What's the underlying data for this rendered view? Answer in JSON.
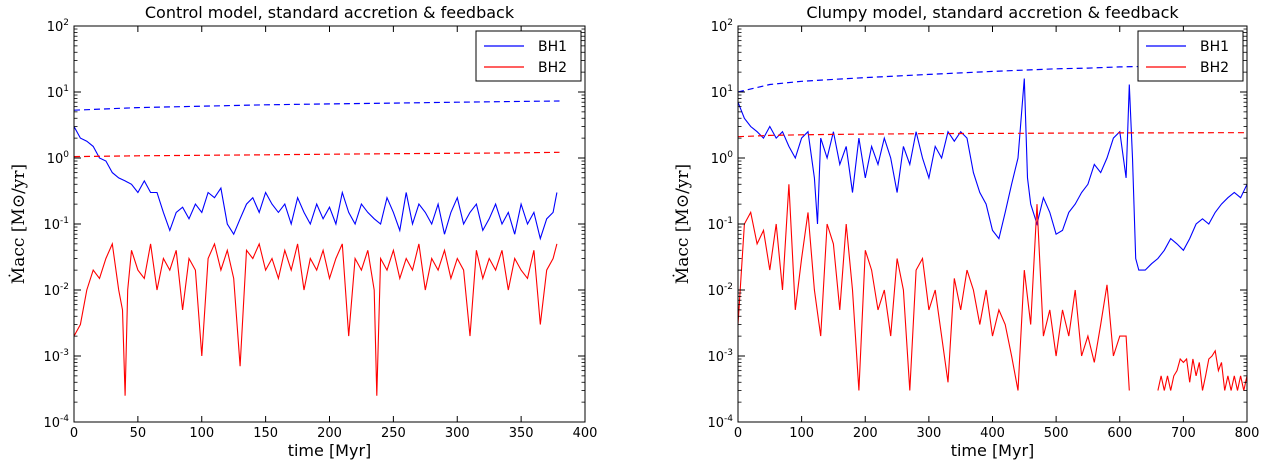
{
  "chart_data": [
    {
      "type": "line",
      "title": "Control model, standard accretion & feedback",
      "xlabel": "time [Myr]",
      "ylabel": "Ṁacc [M⊙/yr]",
      "xlim": [
        0,
        400
      ],
      "ylim": [
        0.0001,
        100
      ],
      "yscale": "log",
      "x_ticks": [
        "0",
        "50",
        "100",
        "150",
        "200",
        "250",
        "300",
        "350",
        "400"
      ],
      "y_ticks": [
        "10^-4",
        "10^-3",
        "10^-2",
        "10^-1",
        "10^0",
        "10^1",
        "10^2"
      ],
      "legend": {
        "position": "top-right",
        "entries": [
          "BH1",
          "BH2"
        ]
      },
      "series": [
        {
          "name": "BH1",
          "color": "#0000ff",
          "style": "solid",
          "x": [
            0,
            5,
            10,
            15,
            20,
            25,
            30,
            35,
            40,
            45,
            50,
            55,
            60,
            65,
            70,
            75,
            80,
            85,
            90,
            95,
            100,
            105,
            110,
            115,
            120,
            125,
            130,
            135,
            140,
            145,
            150,
            155,
            160,
            165,
            170,
            175,
            180,
            185,
            190,
            195,
            200,
            205,
            210,
            215,
            220,
            225,
            230,
            235,
            240,
            245,
            250,
            255,
            260,
            265,
            270,
            275,
            280,
            285,
            290,
            295,
            300,
            305,
            310,
            315,
            320,
            325,
            330,
            335,
            340,
            345,
            350,
            355,
            360,
            365,
            370,
            375,
            378
          ],
          "y": [
            3.0,
            2.0,
            1.8,
            1.5,
            1.0,
            0.9,
            0.6,
            0.5,
            0.45,
            0.4,
            0.3,
            0.45,
            0.3,
            0.3,
            0.15,
            0.08,
            0.15,
            0.18,
            0.12,
            0.2,
            0.15,
            0.3,
            0.25,
            0.35,
            0.1,
            0.07,
            0.12,
            0.2,
            0.25,
            0.15,
            0.3,
            0.2,
            0.15,
            0.2,
            0.1,
            0.25,
            0.15,
            0.1,
            0.2,
            0.12,
            0.18,
            0.1,
            0.3,
            0.15,
            0.1,
            0.2,
            0.15,
            0.12,
            0.1,
            0.25,
            0.15,
            0.08,
            0.3,
            0.1,
            0.2,
            0.15,
            0.1,
            0.2,
            0.07,
            0.15,
            0.25,
            0.1,
            0.15,
            0.2,
            0.08,
            0.12,
            0.2,
            0.1,
            0.15,
            0.07,
            0.2,
            0.1,
            0.15,
            0.06,
            0.12,
            0.15,
            0.3
          ]
        },
        {
          "name": "BH2",
          "color": "#ff0000",
          "style": "solid",
          "x": [
            0,
            5,
            10,
            15,
            20,
            25,
            30,
            35,
            38,
            40,
            42,
            45,
            50,
            55,
            60,
            65,
            70,
            75,
            80,
            85,
            90,
            95,
            100,
            105,
            110,
            115,
            120,
            125,
            130,
            135,
            140,
            145,
            150,
            155,
            160,
            165,
            170,
            175,
            180,
            185,
            190,
            195,
            200,
            205,
            210,
            215,
            220,
            225,
            230,
            235,
            237,
            240,
            245,
            250,
            255,
            260,
            265,
            270,
            275,
            280,
            285,
            290,
            295,
            300,
            305,
            310,
            315,
            320,
            325,
            330,
            335,
            340,
            345,
            350,
            355,
            360,
            365,
            370,
            375,
            378
          ],
          "y": [
            0.002,
            0.003,
            0.01,
            0.02,
            0.015,
            0.03,
            0.05,
            0.01,
            0.005,
            0.00025,
            0.01,
            0.04,
            0.02,
            0.015,
            0.05,
            0.01,
            0.03,
            0.02,
            0.04,
            0.005,
            0.03,
            0.02,
            0.001,
            0.03,
            0.05,
            0.02,
            0.04,
            0.015,
            0.0007,
            0.04,
            0.03,
            0.05,
            0.02,
            0.03,
            0.015,
            0.04,
            0.02,
            0.05,
            0.01,
            0.03,
            0.02,
            0.04,
            0.015,
            0.03,
            0.05,
            0.002,
            0.03,
            0.02,
            0.04,
            0.01,
            0.00025,
            0.03,
            0.02,
            0.04,
            0.015,
            0.03,
            0.02,
            0.05,
            0.01,
            0.03,
            0.02,
            0.04,
            0.015,
            0.03,
            0.02,
            0.002,
            0.04,
            0.015,
            0.03,
            0.02,
            0.04,
            0.01,
            0.03,
            0.02,
            0.015,
            0.04,
            0.003,
            0.02,
            0.03,
            0.05
          ]
        },
        {
          "name": "",
          "color": "#0000ff",
          "style": "dashed",
          "x": [
            0,
            50,
            100,
            150,
            200,
            250,
            300,
            350,
            380
          ],
          "y": [
            5.3,
            5.8,
            6.1,
            6.4,
            6.6,
            6.8,
            7.0,
            7.2,
            7.3
          ]
        },
        {
          "name": "",
          "color": "#ff0000",
          "style": "dashed",
          "x": [
            0,
            50,
            100,
            150,
            200,
            250,
            300,
            350,
            380
          ],
          "y": [
            1.05,
            1.08,
            1.1,
            1.12,
            1.14,
            1.16,
            1.18,
            1.2,
            1.22
          ]
        }
      ]
    },
    {
      "type": "line",
      "title": "Clumpy model, standard accretion & feedback",
      "xlabel": "time [Myr]",
      "ylabel": "Ṁacc [M⊙/yr]",
      "xlim": [
        0,
        800
      ],
      "ylim": [
        0.0001,
        100
      ],
      "yscale": "log",
      "x_ticks": [
        "0",
        "100",
        "200",
        "300",
        "400",
        "500",
        "600",
        "700",
        "800"
      ],
      "y_ticks": [
        "10^-4",
        "10^-3",
        "10^-2",
        "10^-1",
        "10^0",
        "10^1",
        "10^2"
      ],
      "legend": {
        "position": "top-right",
        "entries": [
          "BH1",
          "BH2"
        ]
      },
      "series": [
        {
          "name": "BH1",
          "color": "#0000ff",
          "style": "solid",
          "x": [
            0,
            10,
            20,
            30,
            40,
            50,
            60,
            70,
            80,
            90,
            100,
            110,
            120,
            125,
            130,
            140,
            150,
            160,
            170,
            180,
            190,
            200,
            210,
            220,
            230,
            240,
            250,
            260,
            270,
            280,
            290,
            300,
            310,
            320,
            330,
            340,
            350,
            360,
            370,
            380,
            390,
            400,
            410,
            420,
            430,
            440,
            450,
            455,
            460,
            470,
            480,
            490,
            500,
            510,
            520,
            530,
            540,
            550,
            560,
            570,
            580,
            590,
            600,
            610,
            615,
            620,
            625,
            630,
            640,
            650,
            660,
            670,
            680,
            690,
            700,
            710,
            720,
            730,
            740,
            750,
            760,
            770,
            780,
            790,
            800
          ],
          "y": [
            7.0,
            4.0,
            3.0,
            2.5,
            2.0,
            3.0,
            2.0,
            2.5,
            1.5,
            1.0,
            2.0,
            2.5,
            0.5,
            0.1,
            2.0,
            1.0,
            2.5,
            0.8,
            1.5,
            0.3,
            2.0,
            0.5,
            1.5,
            0.8,
            2.0,
            1.0,
            0.3,
            1.5,
            0.8,
            2.5,
            1.0,
            0.5,
            1.5,
            1.0,
            2.5,
            1.8,
            2.5,
            2.0,
            0.6,
            0.3,
            0.2,
            0.08,
            0.06,
            0.15,
            0.4,
            1.0,
            16.0,
            0.5,
            0.2,
            0.1,
            0.25,
            0.15,
            0.07,
            0.08,
            0.15,
            0.2,
            0.3,
            0.4,
            0.8,
            0.6,
            1.0,
            2.0,
            2.5,
            0.5,
            13.0,
            1.0,
            0.03,
            0.02,
            0.02,
            0.025,
            0.03,
            0.04,
            0.06,
            0.05,
            0.04,
            0.06,
            0.1,
            0.12,
            0.1,
            0.15,
            0.2,
            0.25,
            0.3,
            0.25,
            0.4
          ]
        },
        {
          "name": "BH2",
          "color": "#ff0000",
          "style": "solid",
          "x": [
            0,
            10,
            20,
            30,
            40,
            50,
            60,
            70,
            80,
            90,
            100,
            110,
            120,
            130,
            140,
            150,
            160,
            170,
            180,
            190,
            200,
            210,
            220,
            230,
            240,
            250,
            260,
            270,
            280,
            290,
            300,
            310,
            320,
            330,
            340,
            350,
            360,
            370,
            380,
            390,
            400,
            410,
            420,
            430,
            440,
            450,
            460,
            470,
            480,
            490,
            500,
            510,
            520,
            530,
            540,
            550,
            560,
            570,
            580,
            590,
            600,
            610,
            615
          ],
          "y": [
            0.003,
            0.1,
            0.15,
            0.05,
            0.08,
            0.02,
            0.1,
            0.01,
            0.4,
            0.005,
            0.03,
            0.15,
            0.01,
            0.002,
            0.1,
            0.05,
            0.005,
            0.1,
            0.01,
            0.0003,
            0.04,
            0.02,
            0.005,
            0.01,
            0.002,
            0.03,
            0.01,
            0.0003,
            0.02,
            0.03,
            0.005,
            0.01,
            0.002,
            0.0004,
            0.015,
            0.005,
            0.02,
            0.01,
            0.003,
            0.01,
            0.002,
            0.005,
            0.003,
            0.001,
            0.0003,
            0.02,
            0.003,
            0.2,
            0.002,
            0.005,
            0.001,
            0.005,
            0.002,
            0.01,
            0.001,
            0.002,
            0.0008,
            0.003,
            0.012,
            0.001,
            0.002,
            0.002,
            0.0003
          ]
        },
        {
          "name": "",
          "color": "#ff0000",
          "style": "solid",
          "x": [
            660,
            665,
            670,
            675,
            680,
            685,
            690,
            695,
            700,
            705,
            710,
            715,
            720,
            725,
            730,
            735,
            740,
            745,
            750,
            755,
            760,
            765,
            770,
            775,
            780,
            785,
            790,
            795,
            800
          ],
          "y": [
            0.0003,
            0.0005,
            0.0003,
            0.0005,
            0.0003,
            0.0005,
            0.0006,
            0.0009,
            0.0008,
            0.0009,
            0.0004,
            0.0009,
            0.0005,
            0.0008,
            0.0003,
            0.0005,
            0.0009,
            0.001,
            0.0012,
            0.0006,
            0.0008,
            0.0003,
            0.0005,
            0.0003,
            0.0005,
            0.0003,
            0.0005,
            0.0003,
            0.0005
          ]
        },
        {
          "name": "",
          "color": "#0000ff",
          "style": "dashed",
          "x": [
            0,
            50,
            100,
            150,
            200,
            250,
            300,
            350,
            400,
            450,
            500,
            550,
            600,
            650,
            700,
            750,
            800
          ],
          "y": [
            10,
            13,
            14.5,
            15.5,
            16.5,
            17.5,
            18.5,
            19.5,
            20.5,
            21.5,
            22.5,
            23,
            24,
            24.5,
            25,
            25.5,
            26
          ]
        },
        {
          "name": "",
          "color": "#ff0000",
          "style": "dashed",
          "x": [
            0,
            50,
            100,
            150,
            200,
            250,
            300,
            350,
            400,
            450,
            500,
            550,
            600,
            650,
            700,
            750,
            800
          ],
          "y": [
            2.1,
            2.2,
            2.25,
            2.28,
            2.3,
            2.32,
            2.34,
            2.35,
            2.36,
            2.37,
            2.38,
            2.39,
            2.4,
            2.4,
            2.41,
            2.42,
            2.42
          ]
        }
      ]
    }
  ]
}
